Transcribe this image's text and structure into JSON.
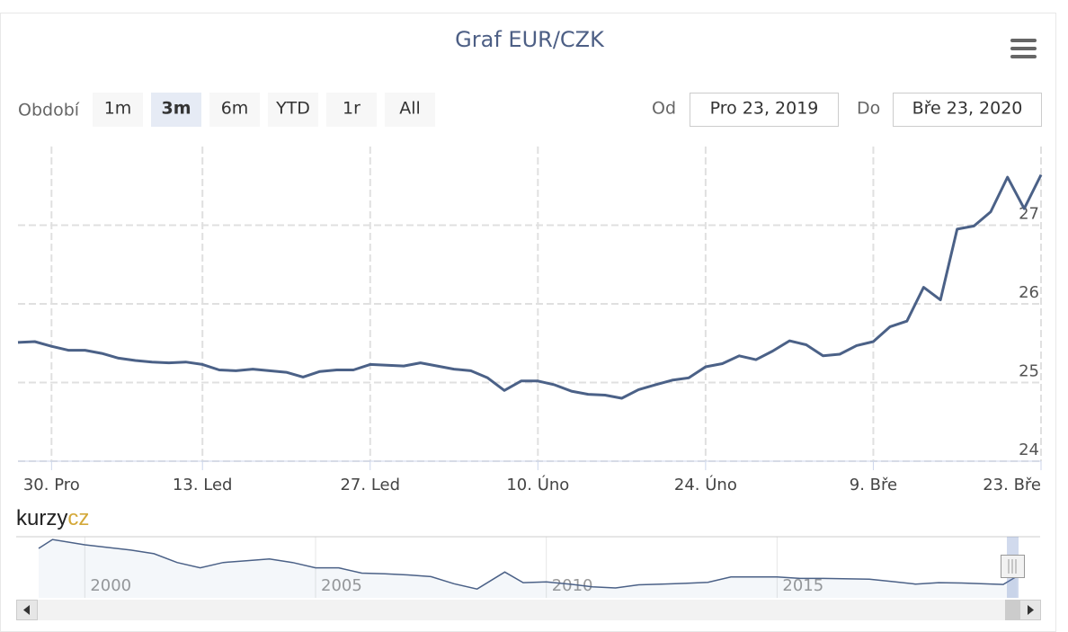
{
  "ui": {
    "range_label": "Období",
    "buttons": [
      "1m",
      "3m",
      "6m",
      "YTD",
      "1r",
      "All"
    ],
    "selected_button": 1,
    "from_label": "Od",
    "from_value": "Pro 23, 2019",
    "to_label": "Do",
    "to_value": "Bře 23, 2020",
    "logo": [
      "kurzy",
      "cz"
    ]
  },
  "chart_data": [
    {
      "type": "line",
      "title": "Graf EUR/CZK",
      "color": "#4b6187",
      "grid": true,
      "categories": [
        null,
        null,
        "30. Pro",
        null,
        null,
        null,
        null,
        null,
        null,
        null,
        null,
        "13. Led",
        null,
        null,
        null,
        null,
        null,
        null,
        null,
        null,
        null,
        "27. Led",
        null,
        null,
        null,
        null,
        null,
        null,
        null,
        null,
        null,
        "10. Úno",
        null,
        null,
        null,
        null,
        null,
        null,
        null,
        null,
        null,
        "24. Úno",
        null,
        null,
        null,
        null,
        null,
        null,
        null,
        null,
        null,
        "9. Bře",
        null,
        null,
        null,
        null,
        null,
        null,
        null,
        null,
        null,
        "23. Bře"
      ],
      "values": [
        25.51,
        25.52,
        25.46,
        25.41,
        25.41,
        25.37,
        25.31,
        25.28,
        25.26,
        25.25,
        25.26,
        25.23,
        25.16,
        25.15,
        25.17,
        25.15,
        25.13,
        25.07,
        25.14,
        25.16,
        25.16,
        25.23,
        25.22,
        25.21,
        25.25,
        25.21,
        25.17,
        25.15,
        25.06,
        24.9,
        25.02,
        25.02,
        24.97,
        24.89,
        24.85,
        24.84,
        24.8,
        24.91,
        24.97,
        25.03,
        25.06,
        25.2,
        25.24,
        25.34,
        25.29,
        25.4,
        25.53,
        25.48,
        25.34,
        25.36,
        25.47,
        25.52,
        25.71,
        25.78,
        26.21,
        26.05,
        26.95,
        26.99,
        27.17,
        27.61,
        27.21,
        27.64
      ],
      "ylim": [
        24,
        28
      ],
      "yticks": [
        24,
        25,
        26,
        27
      ]
    },
    {
      "type": "navigator",
      "color": "#4b6187",
      "x": [
        1999.0,
        1999.3,
        2000,
        2001,
        2001.5,
        2002,
        2002.5,
        2003,
        2003.5,
        2004,
        2004.5,
        2005,
        2005.5,
        2006,
        2006.5,
        2007,
        2007.5,
        2008,
        2008.5,
        2009.1,
        2009.5,
        2010,
        2010.5,
        2011,
        2011.5,
        2012,
        2012.5,
        2013,
        2013.5,
        2014,
        2015,
        2015.5,
        2016,
        2017,
        2017.5,
        2018,
        2018.5,
        2019,
        2019.9,
        2020.2
      ],
      "values": [
        35.5,
        38.0,
        36.5,
        35.0,
        34.0,
        31.5,
        30.0,
        31.5,
        32.0,
        32.5,
        31.5,
        30.0,
        30.0,
        28.5,
        28.3,
        28.0,
        27.5,
        25.5,
        24.0,
        28.8,
        25.8,
        26.0,
        25.4,
        24.6,
        24.3,
        25.2,
        25.4,
        25.6,
        25.9,
        27.4,
        27.4,
        27.0,
        27.0,
        26.8,
        26.1,
        25.4,
        25.8,
        25.7,
        25.3,
        27.6
      ],
      "xlim": [
        1999,
        2020.7
      ],
      "ylim": [
        21.5,
        38.8
      ],
      "xticks": [
        2000,
        2005,
        2010,
        2015
      ]
    }
  ]
}
